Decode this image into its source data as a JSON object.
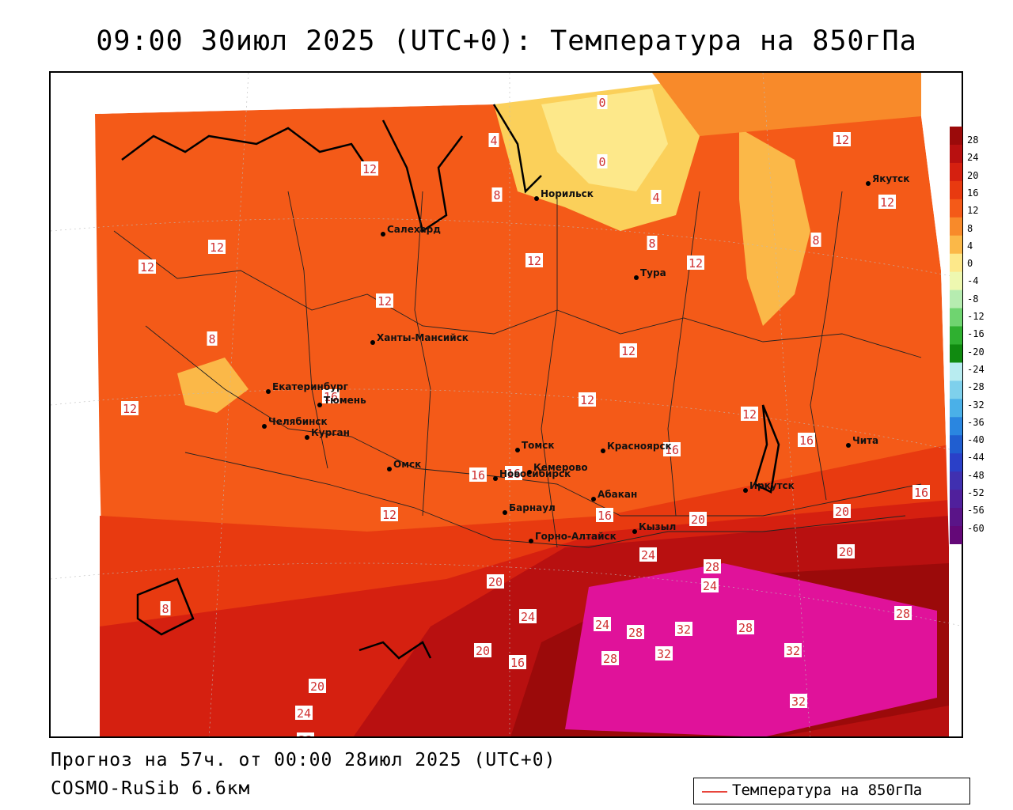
{
  "header": {
    "title": "09:00 30июл 2025 (UTC+0): Температура на 850гПа"
  },
  "footer": {
    "forecast": "Прогноз на 57ч. от 00:00 28июл 2025 (UTC+0)",
    "model": "COSMO-RuSib 6.6км"
  },
  "legend": {
    "label": "Температура на 850гПа",
    "line_color": "#e8453c"
  },
  "colorbar": {
    "labels": [
      "28",
      "24",
      "20",
      "16",
      "12",
      "8",
      "4",
      "0",
      "-4",
      "-8",
      "-12",
      "-16",
      "-20",
      "-24",
      "-28",
      "-32",
      "-36",
      "-40",
      "-44",
      "-48",
      "-52",
      "-56",
      "-60"
    ],
    "colors": [
      "#9b0a0a",
      "#b81010",
      "#d52010",
      "#e83a10",
      "#f45a18",
      "#f88a2a",
      "#fbb848",
      "#fde88a",
      "#eef8b0",
      "#b6ecb0",
      "#6fd470",
      "#2fb030",
      "#108a10",
      "#b8ecf0",
      "#7ed0ec",
      "#4ab0e8",
      "#2a86e0",
      "#205ed0",
      "#2a40c8",
      "#4030b0",
      "#50209c",
      "#5a1488",
      "#640878"
    ]
  },
  "cities": [
    {
      "name": "Норильск"
    },
    {
      "name": "Якутск"
    },
    {
      "name": "Салехард"
    },
    {
      "name": "Тура"
    },
    {
      "name": "Ханты-Мансийск"
    },
    {
      "name": "Екатеринбург"
    },
    {
      "name": "Тюмень"
    },
    {
      "name": "Челябинск"
    },
    {
      "name": "Курган"
    },
    {
      "name": "Омск"
    },
    {
      "name": "Новосибирск"
    },
    {
      "name": "Томск"
    },
    {
      "name": "Кемерово"
    },
    {
      "name": "Красноярск"
    },
    {
      "name": "Абакан"
    },
    {
      "name": "Барнаул"
    },
    {
      "name": "Горно-Алтайск"
    },
    {
      "name": "Кызыл"
    },
    {
      "name": "Иркутск"
    },
    {
      "name": "Чита"
    }
  ],
  "isotherm_labels": [
    "0",
    "0",
    "4",
    "4",
    "8",
    "12",
    "8",
    "12",
    "12",
    "12",
    "8",
    "12",
    "8",
    "12",
    "12",
    "12",
    "12",
    "12",
    "12",
    "12",
    "16",
    "16",
    "16",
    "16",
    "16",
    "16",
    "16",
    "20",
    "20",
    "20",
    "20",
    "20",
    "20",
    "24",
    "24",
    "24",
    "24",
    "24",
    "28",
    "28",
    "28",
    "28",
    "28",
    "32",
    "32",
    "32",
    "32",
    "32",
    "12",
    "8",
    "16",
    "16"
  ]
}
